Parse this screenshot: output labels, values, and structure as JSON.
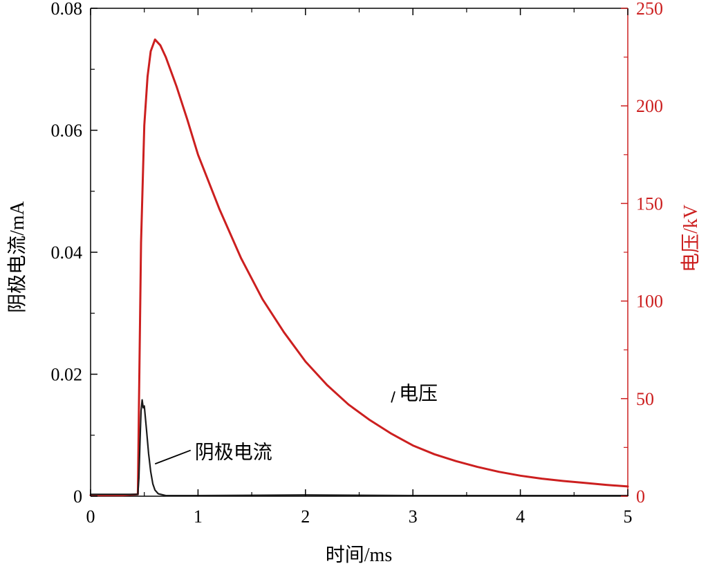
{
  "chart_data": {
    "type": "line",
    "title": "",
    "xlabel": "时间/ms",
    "ylabel_left": "阴极电流/mA",
    "ylabel_right": "电压/kV",
    "xlim": [
      0,
      5
    ],
    "ylim_left": [
      0,
      0.08
    ],
    "ylim_right": [
      0,
      250
    ],
    "x_ticks": [
      "0",
      "1",
      "2",
      "3",
      "4",
      "5"
    ],
    "y_left_ticks": [
      "0",
      "0.02",
      "0.04",
      "0.06",
      "0.08"
    ],
    "y_right_ticks": [
      "0",
      "50",
      "100",
      "150",
      "200",
      "250"
    ],
    "grid": false,
    "colors": {
      "voltage": "#cc1f1f",
      "current": "#1a1a1a",
      "axis_right": "#cc1f1f",
      "axis_left": "#000000"
    },
    "series": [
      {
        "name": "电压",
        "axis": "right",
        "x": [
          0,
          0.3,
          0.44,
          0.45,
          0.47,
          0.5,
          0.53,
          0.56,
          0.6,
          0.65,
          0.7,
          0.8,
          0.9,
          1.0,
          1.2,
          1.4,
          1.6,
          1.8,
          2.0,
          2.2,
          2.4,
          2.6,
          2.8,
          3.0,
          3.2,
          3.4,
          3.6,
          3.8,
          4.0,
          4.2,
          4.4,
          4.6,
          4.8,
          5.0
        ],
        "values": [
          0.5,
          0.5,
          1,
          45,
          130,
          190,
          215,
          228,
          234,
          231,
          225,
          210,
          193,
          175,
          147,
          122,
          101,
          84,
          69,
          57,
          47,
          39,
          32,
          26,
          21.5,
          18,
          15,
          12.5,
          10.5,
          9,
          7.8,
          6.8,
          5.8,
          5
        ]
      },
      {
        "name": "阴极电流",
        "axis": "left",
        "x": [
          0,
          0.44,
          0.45,
          0.46,
          0.47,
          0.48,
          0.49,
          0.5,
          0.52,
          0.54,
          0.56,
          0.58,
          0.6,
          0.63,
          0.7,
          1.0,
          2.0,
          3.0,
          4.0,
          5.0
        ],
        "values": [
          0.0003,
          0.0003,
          0.003,
          0.009,
          0.014,
          0.0158,
          0.0145,
          0.0148,
          0.011,
          0.007,
          0.004,
          0.002,
          0.001,
          0.0004,
          0.0001,
          0.0001,
          0.0002,
          0.0001,
          0.0001,
          0.0001
        ]
      }
    ],
    "annotations": [
      {
        "text": "电压",
        "x": 2.87,
        "y_right": 53,
        "target_x": 2.8,
        "target_y_right": 48
      },
      {
        "text": "阴极电流",
        "x": 0.97,
        "y_left": 0.0073,
        "target_x": 0.6,
        "target_y_left": 0.0053
      }
    ]
  }
}
